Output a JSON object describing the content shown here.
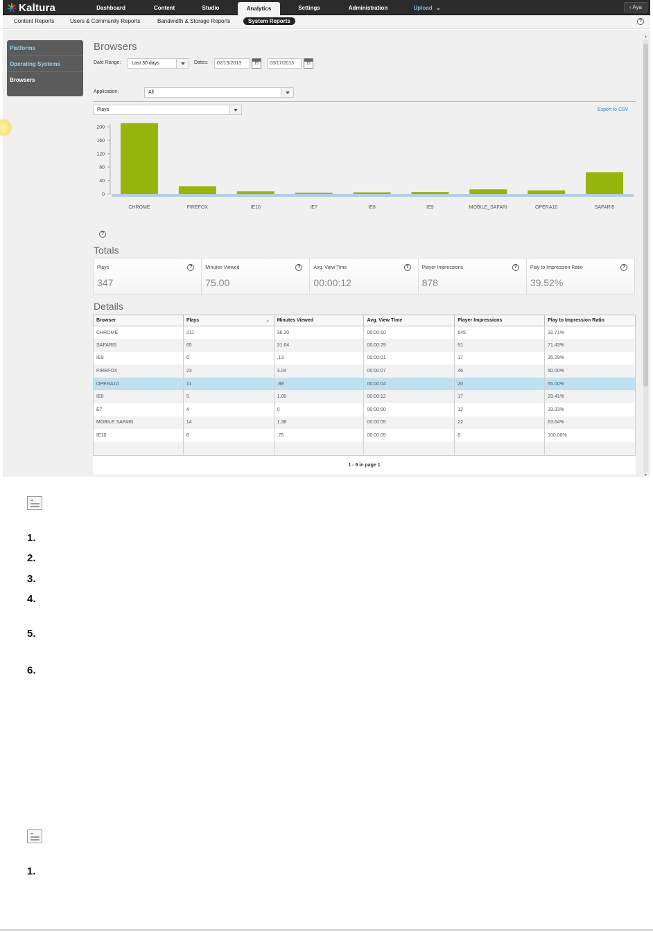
{
  "app": {
    "logo_text": "Kaltura"
  },
  "nav": {
    "items": [
      "Dashboard",
      "Content",
      "Studio",
      "Analytics",
      "Settings",
      "Administration"
    ],
    "upload_label": "Upload",
    "user_label": "Aya"
  },
  "subnav": {
    "items": [
      "Content Reports",
      "Users & Community Reports",
      "Bandwidth & Storage Reports",
      "System Reports"
    ]
  },
  "sidebar": {
    "items": [
      "Platforms",
      "Operating Systems",
      "Browsers"
    ]
  },
  "page": {
    "title": "Browsers"
  },
  "filters": {
    "date_range_label": "Date Range:",
    "date_range_value": "Last 30 days",
    "dates_label": "Dates:",
    "date_from": "02/15/2013",
    "date_to": "03/17/2013",
    "calendar_day": "15",
    "application_label": "Application:",
    "application_value": "All",
    "metric_value": "Plays",
    "export_label": "Export to CSV"
  },
  "chart_data": {
    "type": "bar",
    "categories": [
      "CHROME",
      "FIREFOX",
      "IE10",
      "IE7",
      "IE8",
      "IE9",
      "MOBILE_SAFARI",
      "OPERA10",
      "SAFARI5"
    ],
    "values": [
      211,
      23,
      8,
      4,
      5,
      6,
      14,
      11,
      65
    ],
    "ylim": [
      0,
      200
    ],
    "yticks": [
      0,
      40,
      80,
      120,
      160,
      200
    ],
    "color": "#97b50c"
  },
  "totals": {
    "title": "Totals",
    "items": [
      {
        "label": "Plays",
        "value": "347"
      },
      {
        "label": "Minutes Viewed",
        "value": "75.00"
      },
      {
        "label": "Avg. View Time",
        "value": "00:00:12"
      },
      {
        "label": "Player Impressions",
        "value": "878"
      },
      {
        "label": "Play to Impression Ratio",
        "value": "39.52%"
      }
    ]
  },
  "details": {
    "title": "Details",
    "columns": [
      "Browser",
      "Plays",
      "Minutes Viewed",
      "Avg. View Time",
      "Player Impressions",
      "Play to Impression Ratio"
    ],
    "rows": [
      [
        "CHROME",
        "211",
        "36.20",
        "00:00:10",
        "645",
        "32.71%"
      ],
      [
        "SAFARI5",
        "65",
        "31.64",
        "00:00:29",
        "91",
        "71.43%"
      ],
      [
        "IE9",
        "6",
        ".13",
        "00:00:01",
        "17",
        "35.29%"
      ],
      [
        "FIREFOX",
        "23",
        "3.04",
        "00:00:07",
        "46",
        "50.00%"
      ],
      [
        "OPERA10",
        "11",
        ".88",
        "00:00:04",
        "20",
        "55.00%"
      ],
      [
        "IE8",
        "5",
        "1.00",
        "00:00:12",
        "17",
        "29.41%"
      ],
      [
        "E7",
        "4",
        "0",
        "00:00:00",
        "12",
        "33.33%"
      ],
      [
        "MOBILE SAFARI",
        "14",
        "1.38",
        "00:00:05",
        "22",
        "63.64%"
      ],
      [
        "IE10",
        "8",
        ".75",
        "00:00:05",
        "8",
        "100.00%"
      ]
    ],
    "pager": "1 - 9 in page 1"
  },
  "doc": {
    "numbers_a": [
      "1.",
      "2.",
      "3.",
      "4.",
      "5.",
      "6."
    ],
    "numbers_b": [
      "1."
    ]
  }
}
